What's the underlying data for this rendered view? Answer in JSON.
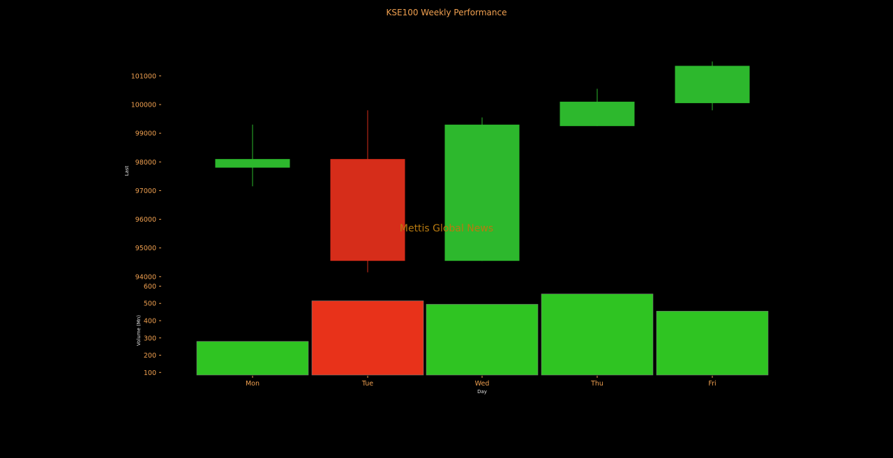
{
  "colors": {
    "background": "#000000",
    "text": "#f0a050",
    "axis_label": "#e0e0e0",
    "up": "#2db82d",
    "down": "#d62d1a",
    "up_volume": "#2fc422",
    "down_volume": "#e8321a",
    "watermark": "#b87a10"
  },
  "watermark": "Mettis Global News",
  "chart_data": {
    "type": "candlestick",
    "title": "KSE100 Weekly Performance",
    "xlabel": "Day",
    "categories": [
      "Mon",
      "Tue",
      "Wed",
      "Thu",
      "Fri"
    ],
    "price": {
      "ylabel": "Last",
      "ylim": [
        93850,
        101750
      ],
      "yticks": [
        94000,
        95000,
        96000,
        97000,
        98000,
        99000,
        100000,
        101000
      ],
      "open": [
        97800,
        98100,
        94550,
        99250,
        100050
      ],
      "high": [
        99300,
        99800,
        99550,
        100550,
        101500
      ],
      "low": [
        97150,
        94150,
        94550,
        99250,
        99800
      ],
      "close": [
        98100,
        94550,
        99300,
        100100,
        101350
      ]
    },
    "volume": {
      "ylabel": "Volume (Mn)",
      "ylim": [
        85,
        610
      ],
      "yticks": [
        100,
        200,
        300,
        400,
        500,
        600
      ],
      "values": [
        280,
        515,
        495,
        555,
        455
      ],
      "direction": [
        "up",
        "down",
        "up",
        "up",
        "up"
      ]
    },
    "grid": false,
    "legend": "none"
  }
}
